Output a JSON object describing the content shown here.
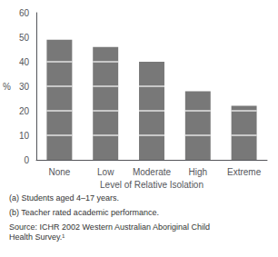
{
  "chart_data": {
    "type": "bar",
    "categories": [
      "None",
      "Low",
      "Moderate",
      "High",
      "Extreme"
    ],
    "values": [
      49,
      46,
      40,
      28,
      22
    ],
    "color": "#787878",
    "xlabel": "Level of Relative Isolation",
    "ylabel": "%",
    "ylim": [
      0,
      60
    ],
    "yticks": [
      0,
      10,
      20,
      30,
      40,
      50,
      60
    ],
    "grid": false,
    "annotations": [
      "(a) Students aged 4–17 years.",
      "(b) Teacher rated academic performance.",
      "Source: ICHR 2002 Western Australian Aboriginal Child\nHealth Survey.¹"
    ]
  }
}
